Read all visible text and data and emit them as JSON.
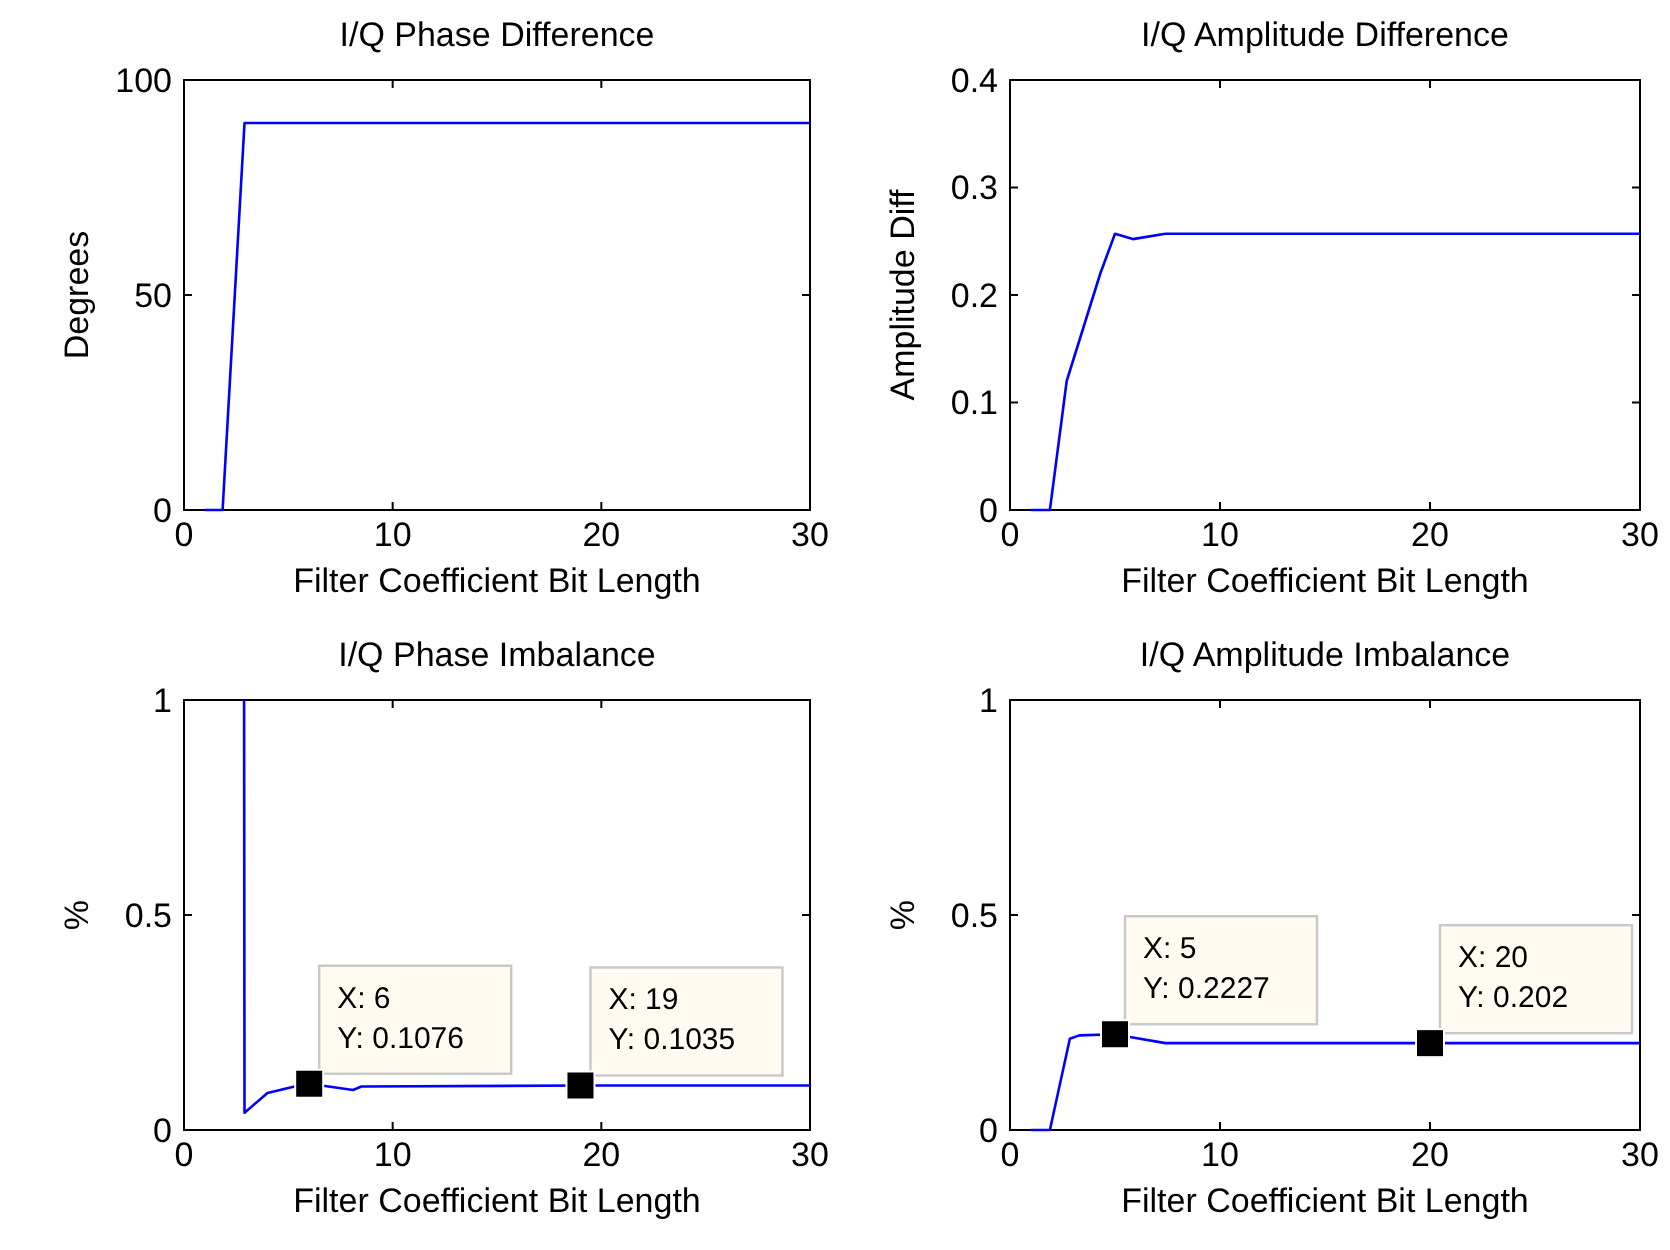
{
  "chart_data": [
    {
      "type": "line",
      "title": "I/Q Phase Difference",
      "xlabel": "Filter Coefficient Bit Length",
      "ylabel": "Degrees",
      "xlim": [
        0,
        30
      ],
      "xticks": [
        0,
        10,
        20,
        30
      ],
      "ylim": [
        0,
        100
      ],
      "yticks": [
        0,
        50,
        100
      ],
      "grid": false,
      "marker": "none",
      "line_style": "solid",
      "series": [
        {
          "color": "#0000ff",
          "x": [
            1,
            1.85,
            2.9,
            30
          ],
          "values": [
            0,
            0,
            90,
            90
          ]
        }
      ]
    },
    {
      "type": "line",
      "title": "I/Q Amplitude Difference",
      "xlabel": "Filter Coefficient Bit Length",
      "ylabel": "Amplitude Diff",
      "xlim": [
        0,
        30
      ],
      "xticks": [
        0,
        10,
        20,
        30
      ],
      "ylim": [
        0,
        0.4
      ],
      "yticks": [
        0,
        0.1,
        0.2,
        0.3,
        0.4
      ],
      "grid": false,
      "marker": "none",
      "line_style": "solid",
      "series": [
        {
          "color": "#0000ff",
          "x": [
            1,
            1.9,
            2.7,
            3.5,
            4.3,
            5,
            5.85,
            7.4,
            30
          ],
          "values": [
            0,
            0,
            0.12,
            0.17,
            0.22,
            0.257,
            0.252,
            0.257,
            0.257
          ]
        }
      ]
    },
    {
      "type": "line",
      "title": "I/Q Phase Imbalance",
      "xlabel": "Filter Coefficient Bit Length",
      "ylabel": "%",
      "xlim": [
        0,
        30
      ],
      "xticks": [
        0,
        10,
        20,
        30
      ],
      "ylim": [
        0,
        1
      ],
      "yticks": [
        0,
        0.5,
        1
      ],
      "grid": false,
      "marker": "none",
      "line_style": "solid",
      "series": [
        {
          "color": "#0000ff",
          "x": [
            2.88,
            2.9,
            4,
            5.3,
            6,
            8.1,
            8.5,
            19,
            30
          ],
          "values": [
            1,
            0.04,
            0.086,
            0.101,
            0.1076,
            0.093,
            0.101,
            0.1035,
            0.1035
          ]
        }
      ],
      "annotations": [
        {
          "text": "X: 6\nY: 0.1076",
          "x": 6,
          "y": 0.1076
        },
        {
          "text": "X: 19\nY: 0.1035",
          "x": 19,
          "y": 0.1035
        }
      ]
    },
    {
      "type": "line",
      "title": "I/Q Amplitude Imbalance",
      "xlabel": "Filter Coefficient Bit Length",
      "ylabel": "%",
      "xlim": [
        0,
        30
      ],
      "xticks": [
        0,
        10,
        20,
        30
      ],
      "ylim": [
        0,
        1
      ],
      "yticks": [
        0,
        0.5,
        1
      ],
      "grid": false,
      "marker": "none",
      "line_style": "solid",
      "series": [
        {
          "color": "#0000ff",
          "x": [
            1,
            1.9,
            2.85,
            3.3,
            5,
            5.85,
            7.4,
            20,
            30
          ],
          "values": [
            0,
            0,
            0.212,
            0.22,
            0.2227,
            0.215,
            0.202,
            0.202,
            0.202
          ]
        }
      ],
      "annotations": [
        {
          "text": "X: 5\nY: 0.2227",
          "x": 5,
          "y": 0.2227
        },
        {
          "text": "X: 20\nY: 0.202",
          "x": 20,
          "y": 0.202
        }
      ]
    }
  ]
}
